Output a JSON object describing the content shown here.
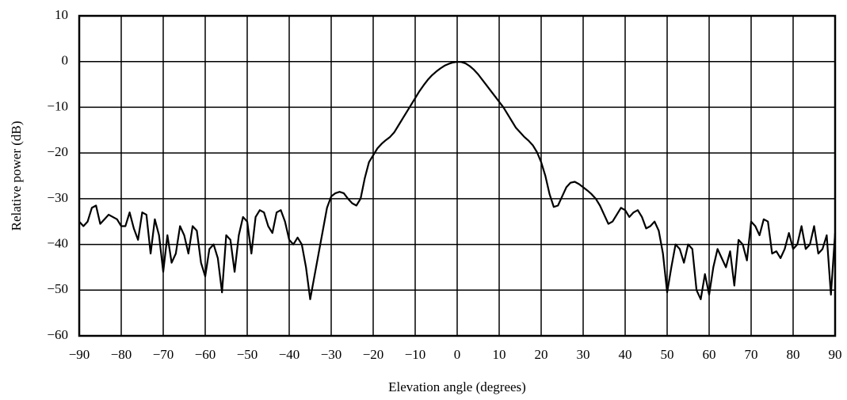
{
  "chart_data": {
    "type": "line",
    "x_label": "Elevation angle (degrees)",
    "y_label": "Relative power (dB)",
    "xlim": [
      -90,
      90
    ],
    "ylim": [
      -60,
      10
    ],
    "grid": true,
    "xticks": [
      {
        "value": -90,
        "label": "−90"
      },
      {
        "value": -80,
        "label": "−80"
      },
      {
        "value": -70,
        "label": "−70"
      },
      {
        "value": -60,
        "label": "−60"
      },
      {
        "value": -50,
        "label": "−50"
      },
      {
        "value": -40,
        "label": "−40"
      },
      {
        "value": -30,
        "label": "−30"
      },
      {
        "value": -20,
        "label": "−20"
      },
      {
        "value": -10,
        "label": "−10"
      },
      0,
      10,
      20,
      30,
      40,
      50,
      60,
      70,
      80,
      90
    ],
    "yticks": [
      10,
      0,
      {
        "value": -10,
        "label": "−10"
      },
      {
        "value": -20,
        "label": "−20"
      },
      {
        "value": -30,
        "label": "−30"
      },
      {
        "value": -40,
        "label": "−40"
      },
      {
        "value": -50,
        "label": "−50"
      },
      {
        "value": -60,
        "label": "−60"
      }
    ],
    "x": [
      -90,
      -89,
      -88,
      -87,
      -86,
      -85,
      -84,
      -83,
      -82,
      -81,
      -80,
      -79,
      -78,
      -77,
      -76,
      -75,
      -74,
      -73,
      -72,
      -71,
      -70,
      -69,
      -68,
      -67,
      -66,
      -65,
      -64,
      -63,
      -62,
      -61,
      -60,
      -59,
      -58,
      -57,
      -56,
      -55,
      -54,
      -53,
      -52,
      -51,
      -50,
      -49,
      -48,
      -47,
      -46,
      -45,
      -44,
      -43,
      -42,
      -41,
      -40,
      -39,
      -38,
      -37,
      -36,
      -35,
      -34,
      -33,
      -32,
      -31,
      -30,
      -29,
      -28,
      -27,
      -26,
      -25,
      -24,
      -23,
      -22,
      -21,
      -20,
      -19,
      -18,
      -17,
      -16,
      -15,
      -14,
      -13,
      -12,
      -11,
      -10,
      -9,
      -8,
      -7,
      -6,
      -5,
      -4,
      -3,
      -2,
      -1,
      0,
      1,
      2,
      3,
      4,
      5,
      6,
      7,
      8,
      9,
      10,
      11,
      12,
      13,
      14,
      15,
      16,
      17,
      18,
      19,
      20,
      21,
      22,
      23,
      24,
      25,
      26,
      27,
      28,
      29,
      30,
      31,
      32,
      33,
      34,
      35,
      36,
      37,
      38,
      39,
      40,
      41,
      42,
      43,
      44,
      45,
      46,
      47,
      48,
      49,
      50,
      51,
      52,
      53,
      54,
      55,
      56,
      57,
      58,
      59,
      60,
      61,
      62,
      63,
      64,
      65,
      66,
      67,
      68,
      69,
      70,
      71,
      72,
      73,
      74,
      75,
      76,
      77,
      78,
      79,
      80,
      81,
      82,
      83,
      84,
      85,
      86,
      87,
      88,
      89,
      90
    ],
    "series": [
      {
        "color": "#000000",
        "values": [
          -35,
          -36,
          -35,
          -32,
          -31.5,
          -35.5,
          -34.5,
          -33.5,
          -34,
          -34.5,
          -36,
          -36,
          -33,
          -36.5,
          -39,
          -33,
          -33.5,
          -42,
          -34.5,
          -38,
          -46,
          -38,
          -44,
          -42,
          -36,
          -38,
          -42,
          -36,
          -37,
          -44,
          -47,
          -41,
          -40,
          -43,
          -50.5,
          -38,
          -39,
          -46,
          -38,
          -34,
          -35,
          -42,
          -34,
          -32.5,
          -33,
          -36,
          -37.5,
          -33,
          -32.5,
          -35,
          -39,
          -40,
          -38.5,
          -40,
          -45,
          -52,
          -47,
          -42,
          -37,
          -32,
          -29.5,
          -28.8,
          -28.5,
          -28.8,
          -30,
          -31,
          -31.5,
          -30,
          -25.5,
          -22,
          -20.5,
          -19,
          -18,
          -17.2,
          -16.5,
          -15.5,
          -14,
          -12.5,
          -11,
          -9.5,
          -8,
          -6.5,
          -5.2,
          -4,
          -3,
          -2.2,
          -1.5,
          -0.9,
          -0.5,
          -0.2,
          -0.05,
          -0.1,
          -0.4,
          -1,
          -1.8,
          -2.8,
          -4,
          -5.2,
          -6.4,
          -7.6,
          -8.8,
          -10,
          -11.5,
          -13,
          -14.5,
          -15.5,
          -16.5,
          -17.3,
          -18.3,
          -19.8,
          -22,
          -25,
          -29,
          -31.8,
          -31.5,
          -29.5,
          -27.5,
          -26.5,
          -26.3,
          -26.8,
          -27.5,
          -28.2,
          -29,
          -30,
          -31.5,
          -33.5,
          -35.5,
          -35,
          -33.5,
          -32,
          -32.5,
          -34,
          -33,
          -32.5,
          -34,
          -36.5,
          -36,
          -35,
          -37,
          -42,
          -50.5,
          -45,
          -40,
          -41,
          -44,
          -40,
          -41,
          -50,
          -52,
          -46.5,
          -51,
          -45,
          -41,
          -43,
          -45,
          -41.5,
          -49,
          -39,
          -40,
          -43.5,
          -35,
          -36,
          -38,
          -34.5,
          -35,
          -42,
          -41.5,
          -43,
          -41,
          -37.5,
          -41,
          -40,
          -36,
          -41,
          -40,
          -36,
          -42,
          -41,
          -38,
          -51,
          -37.5
        ]
      }
    ]
  }
}
